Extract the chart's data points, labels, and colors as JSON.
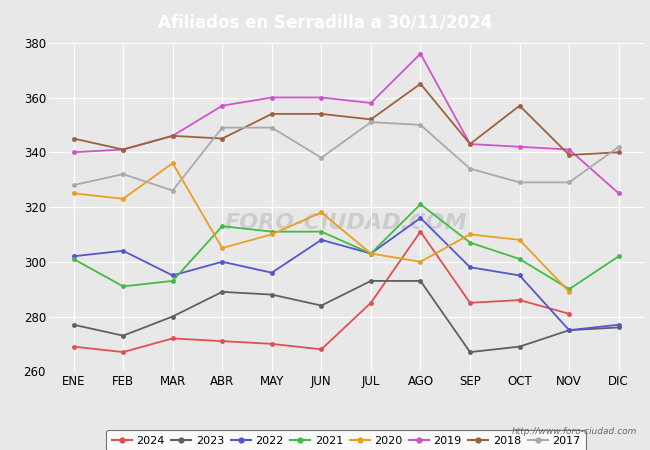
{
  "title": "Afiliados en Serradilla a 30/11/2024",
  "title_bg_color": "#4da6ff",
  "xlabel": "",
  "ylabel": "",
  "ylim": [
    260,
    380
  ],
  "yticks": [
    260,
    280,
    300,
    320,
    340,
    360,
    380
  ],
  "months": [
    "ENE",
    "FEB",
    "MAR",
    "ABR",
    "MAY",
    "JUN",
    "JUL",
    "AGO",
    "SEP",
    "OCT",
    "NOV",
    "DIC"
  ],
  "series": {
    "2024": {
      "color": "#e05050",
      "data": [
        269,
        267,
        272,
        271,
        270,
        268,
        285,
        311,
        285,
        286,
        281,
        null
      ]
    },
    "2023": {
      "color": "#606060",
      "data": [
        277,
        273,
        280,
        289,
        288,
        284,
        293,
        293,
        267,
        269,
        275,
        276
      ]
    },
    "2022": {
      "color": "#5555cc",
      "data": [
        302,
        304,
        295,
        300,
        296,
        308,
        303,
        316,
        298,
        295,
        275,
        277
      ]
    },
    "2021": {
      "color": "#44bb44",
      "data": [
        301,
        291,
        293,
        313,
        311,
        311,
        303,
        321,
        307,
        301,
        290,
        302
      ]
    },
    "2020": {
      "color": "#e8a020",
      "data": [
        325,
        323,
        336,
        305,
        310,
        318,
        303,
        300,
        310,
        308,
        289,
        null
      ]
    },
    "2019": {
      "color": "#cc55cc",
      "data": [
        340,
        341,
        346,
        357,
        360,
        360,
        358,
        376,
        343,
        342,
        341,
        325
      ]
    },
    "2018": {
      "color": "#a06040",
      "data": [
        345,
        341,
        346,
        345,
        354,
        354,
        352,
        365,
        343,
        357,
        339,
        340
      ]
    },
    "2017": {
      "color": "#aaaaaa",
      "data": [
        328,
        332,
        326,
        349,
        349,
        338,
        351,
        350,
        334,
        329,
        329,
        342
      ]
    }
  },
  "watermark": "FORO-CIUDAD.COM",
  "url": "http://www.foro-ciudad.com",
  "background_color": "#e8e8e8",
  "plot_bg_color": "#e8e8e8",
  "grid_color": "#ffffff",
  "legend_fontsize": 8,
  "tick_fontsize": 8.5,
  "title_fontsize": 12
}
